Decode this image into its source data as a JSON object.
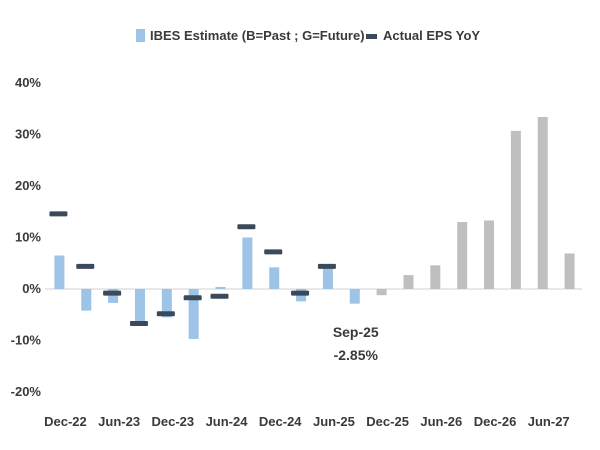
{
  "chart_data": {
    "type": "bar",
    "title": "",
    "xlabel": "",
    "ylabel": "",
    "ylim": [
      -20,
      40
    ],
    "y_ticks": [
      "40%",
      "30%",
      "20%",
      "10%",
      "0%",
      "-10%",
      "-20%"
    ],
    "y_tick_values": [
      40,
      30,
      20,
      10,
      0,
      -10,
      -20
    ],
    "categories": [
      "Dec-22",
      "Mar-23",
      "Jun-23",
      "Sep-23",
      "Dec-23",
      "Mar-24",
      "Jun-24",
      "Sep-24",
      "Dec-24",
      "Mar-25",
      "Jun-25",
      "Sep-25",
      "Dec-25",
      "Mar-26",
      "Jun-26",
      "Sep-26",
      "Dec-26",
      "Mar-27",
      "Jun-27",
      "Sep-27"
    ],
    "x_tick_labels": [
      "Dec-22",
      "",
      "Jun-23",
      "",
      "Dec-23",
      "",
      "Jun-24",
      "",
      "Dec-24",
      "",
      "Jun-25",
      "",
      "Dec-25",
      "",
      "Jun-26",
      "",
      "Dec-26",
      "",
      "Jun-27",
      ""
    ],
    "legend": {
      "position": "top",
      "estimate_label": "IBES Estimate (B=Past ; G=Future)",
      "actual_label": "Actual EPS YoY"
    },
    "colors": {
      "past": "#9dc3e6",
      "future": "#bfbfbf",
      "actual": "#3b4a5a",
      "axis": "#d0d0d0",
      "text": "#3a3a3a"
    },
    "series": [
      {
        "name": "IBES Estimate (B=Past ; G=Future)",
        "values": [
          6.5,
          -4.2,
          -2.7,
          -6.2,
          -5.5,
          -9.7,
          0.4,
          10.0,
          4.2,
          -2.4,
          4.2,
          -2.85,
          -1.2,
          2.7,
          4.6,
          13.0,
          13.3,
          30.7,
          33.4,
          6.9
        ],
        "phase": [
          "past",
          "past",
          "past",
          "past",
          "past",
          "past",
          "past",
          "past",
          "past",
          "past",
          "past",
          "past",
          "future",
          "future",
          "future",
          "future",
          "future",
          "future",
          "future",
          "future"
        ]
      },
      {
        "name": "Actual EPS YoY",
        "values": [
          14.5,
          4.3,
          -0.9,
          -6.8,
          -4.9,
          -1.8,
          -1.5,
          12.0,
          7.1,
          -0.9,
          4.3,
          null,
          null,
          null,
          null,
          null,
          null,
          null,
          null,
          null
        ]
      }
    ],
    "annotations": [
      {
        "category": "Sep-25",
        "line1": "Sep-25",
        "line2": "-2.85%"
      }
    ]
  }
}
